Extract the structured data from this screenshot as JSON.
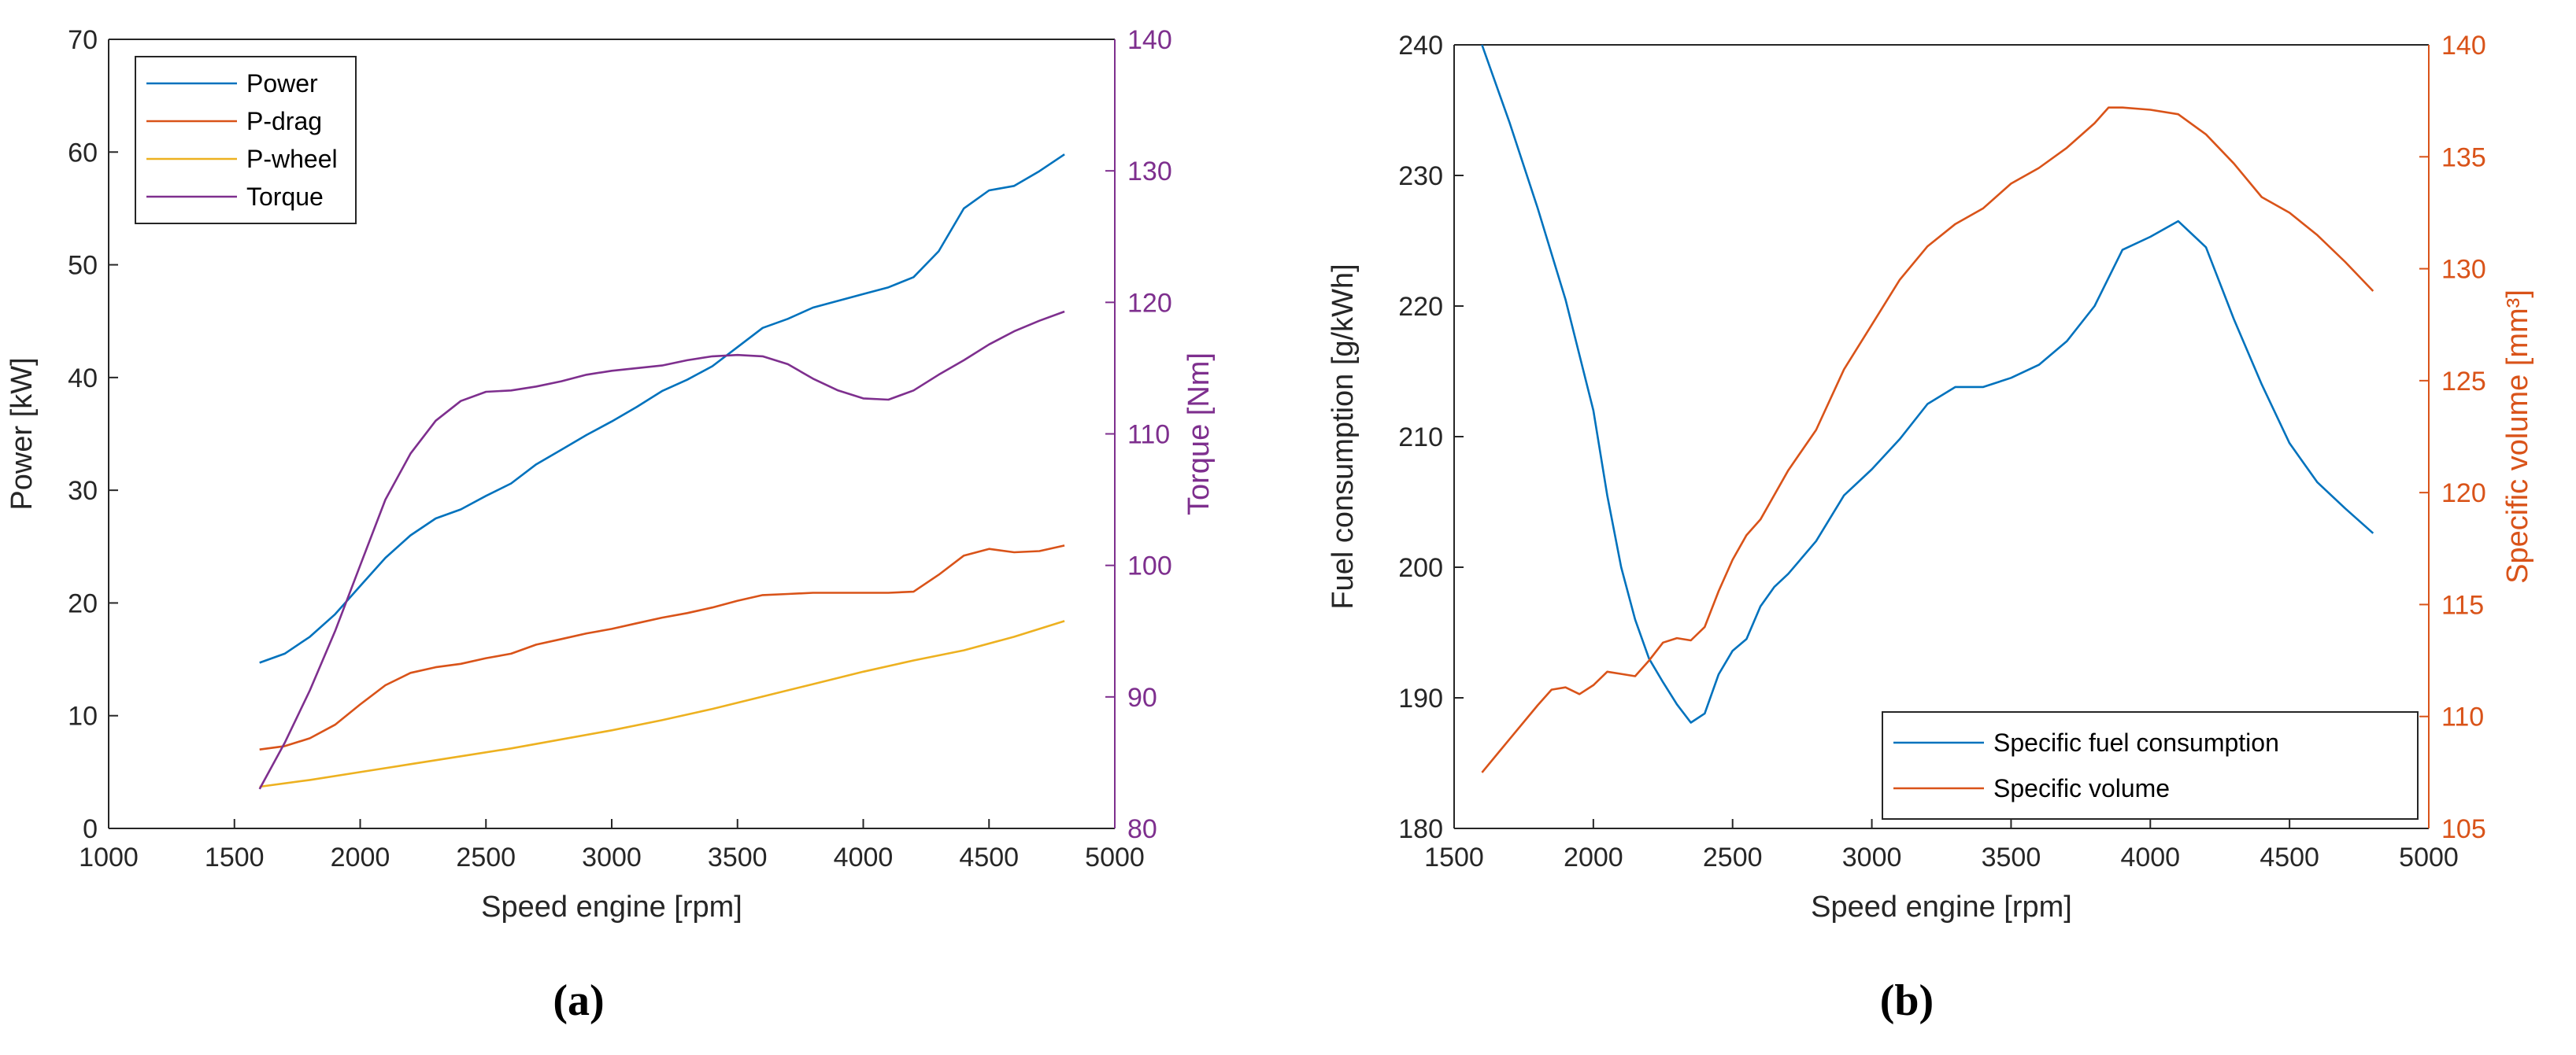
{
  "colors": {
    "power": "#0072BD",
    "p_drag": "#D95319",
    "p_wheel": "#EDB120",
    "torque": "#7E2F8E",
    "sfc": "#0072BD",
    "spec_vol": "#D95319",
    "axis": "#262626",
    "right_axis_a": "#7E2F8E",
    "right_axis_b": "#D95319"
  },
  "panels": {
    "a": "(a)",
    "b": "(b)"
  },
  "chart_data": [
    {
      "type": "line",
      "id": "a",
      "xlabel": "Speed engine [rpm]",
      "ylabel": "Power [kW]",
      "y2label": "Torque [Nm]",
      "xlim": [
        1000,
        5000
      ],
      "ylim": [
        0,
        70
      ],
      "y2lim": [
        80,
        140
      ],
      "xticks": [
        "1000",
        "1500",
        "2000",
        "2500",
        "3000",
        "3500",
        "4000",
        "4500",
        "5000"
      ],
      "yticks": [
        "0",
        "10",
        "20",
        "30",
        "40",
        "50",
        "60",
        "70"
      ],
      "y2ticks": [
        "80",
        "90",
        "100",
        "110",
        "120",
        "130",
        "140"
      ],
      "legend_position": "top-left",
      "series": [
        {
          "name": "Power",
          "axis": "left",
          "color_key": "power",
          "points": [
            [
              1600,
              14.7
            ],
            [
              1700,
              15.5
            ],
            [
              1800,
              17
            ],
            [
              1900,
              19
            ],
            [
              2000,
              21.5
            ],
            [
              2100,
              24
            ],
            [
              2200,
              26
            ],
            [
              2300,
              27.5
            ],
            [
              2400,
              28.3
            ],
            [
              2500,
              29.5
            ],
            [
              2600,
              30.6
            ],
            [
              2700,
              32.3
            ],
            [
              2800,
              33.6
            ],
            [
              2900,
              34.9
            ],
            [
              3000,
              36.1
            ],
            [
              3100,
              37.4
            ],
            [
              3200,
              38.8
            ],
            [
              3300,
              39.8
            ],
            [
              3400,
              41.0
            ],
            [
              3500,
              42.7
            ],
            [
              3600,
              44.4
            ],
            [
              3700,
              45.2
            ],
            [
              3800,
              46.2
            ],
            [
              3900,
              46.8
            ],
            [
              4000,
              47.4
            ],
            [
              4100,
              48.0
            ],
            [
              4200,
              48.9
            ],
            [
              4300,
              51.2
            ],
            [
              4400,
              55.0
            ],
            [
              4500,
              56.6
            ],
            [
              4600,
              57.0
            ],
            [
              4700,
              58.3
            ],
            [
              4800,
              59.8
            ]
          ]
        },
        {
          "name": "P-drag",
          "axis": "left",
          "color_key": "p_drag",
          "points": [
            [
              1600,
              7
            ],
            [
              1700,
              7.3
            ],
            [
              1800,
              8
            ],
            [
              1900,
              9.2
            ],
            [
              2000,
              11
            ],
            [
              2100,
              12.7
            ],
            [
              2200,
              13.8
            ],
            [
              2300,
              14.3
            ],
            [
              2400,
              14.6
            ],
            [
              2500,
              15.1
            ],
            [
              2600,
              15.5
            ],
            [
              2700,
              16.3
            ],
            [
              2800,
              16.8
            ],
            [
              2900,
              17.3
            ],
            [
              3000,
              17.7
            ],
            [
              3100,
              18.2
            ],
            [
              3200,
              18.7
            ],
            [
              3300,
              19.1
            ],
            [
              3400,
              19.6
            ],
            [
              3500,
              20.2
            ],
            [
              3600,
              20.7
            ],
            [
              3700,
              20.8
            ],
            [
              3800,
              20.9
            ],
            [
              3900,
              20.9
            ],
            [
              4000,
              20.9
            ],
            [
              4100,
              20.9
            ],
            [
              4200,
              21.0
            ],
            [
              4300,
              22.5
            ],
            [
              4400,
              24.2
            ],
            [
              4500,
              24.8
            ],
            [
              4600,
              24.5
            ],
            [
              4700,
              24.6
            ],
            [
              4800,
              25.1
            ]
          ]
        },
        {
          "name": "P-wheel",
          "axis": "left",
          "color_key": "p_wheel",
          "points": [
            [
              1600,
              3.7
            ],
            [
              1800,
              4.3
            ],
            [
              2000,
              5.0
            ],
            [
              2200,
              5.7
            ],
            [
              2400,
              6.4
            ],
            [
              2600,
              7.1
            ],
            [
              2800,
              7.9
            ],
            [
              3000,
              8.7
            ],
            [
              3200,
              9.6
            ],
            [
              3400,
              10.6
            ],
            [
              3600,
              11.7
            ],
            [
              3800,
              12.8
            ],
            [
              4000,
              13.9
            ],
            [
              4200,
              14.9
            ],
            [
              4400,
              15.8
            ],
            [
              4600,
              17.0
            ],
            [
              4800,
              18.4
            ]
          ]
        },
        {
          "name": "Torque",
          "axis": "right",
          "color_key": "torque",
          "points": [
            [
              1600,
              83
            ],
            [
              1700,
              86.5
            ],
            [
              1800,
              90.5
            ],
            [
              1900,
              95
            ],
            [
              2000,
              100
            ],
            [
              2100,
              105
            ],
            [
              2200,
              108.5
            ],
            [
              2300,
              111
            ],
            [
              2400,
              112.5
            ],
            [
              2500,
              113.2
            ],
            [
              2600,
              113.3
            ],
            [
              2700,
              113.6
            ],
            [
              2800,
              114.0
            ],
            [
              2900,
              114.5
            ],
            [
              3000,
              114.8
            ],
            [
              3100,
              115.0
            ],
            [
              3200,
              115.2
            ],
            [
              3300,
              115.6
            ],
            [
              3400,
              115.9
            ],
            [
              3500,
              116.0
            ],
            [
              3600,
              115.9
            ],
            [
              3700,
              115.3
            ],
            [
              3800,
              114.2
            ],
            [
              3900,
              113.3
            ],
            [
              4000,
              112.7
            ],
            [
              4100,
              112.6
            ],
            [
              4200,
              113.3
            ],
            [
              4300,
              114.5
            ],
            [
              4400,
              115.6
            ],
            [
              4500,
              116.8
            ],
            [
              4600,
              117.8
            ],
            [
              4700,
              118.6
            ],
            [
              4800,
              119.3
            ]
          ]
        }
      ]
    },
    {
      "type": "line",
      "id": "b",
      "xlabel": "Speed engine [rpm]",
      "ylabel": "Fuel consumption [g/kWh]",
      "y2label": "Specific volume [mm³]",
      "xlim": [
        1500,
        5000
      ],
      "ylim": [
        180,
        240
      ],
      "y2lim": [
        105,
        140
      ],
      "xticks": [
        "1500",
        "2000",
        "2500",
        "3000",
        "3500",
        "4000",
        "4500",
        "5000"
      ],
      "yticks": [
        "180",
        "190",
        "200",
        "210",
        "220",
        "230",
        "240"
      ],
      "y2ticks": [
        "105",
        "110",
        "115",
        "120",
        "125",
        "130",
        "135",
        "140"
      ],
      "legend_position": "bottom-right",
      "series": [
        {
          "name": "Specific fuel consumption",
          "axis": "left",
          "color_key": "sfc",
          "points": [
            [
              1600,
              240
            ],
            [
              1700,
              234
            ],
            [
              1800,
              227.5
            ],
            [
              1900,
              220.5
            ],
            [
              2000,
              212
            ],
            [
              2050,
              205.5
            ],
            [
              2100,
              200
            ],
            [
              2150,
              196
            ],
            [
              2200,
              193
            ],
            [
              2250,
              191.2
            ],
            [
              2300,
              189.5
            ],
            [
              2350,
              188.1
            ],
            [
              2400,
              188.8
            ],
            [
              2450,
              191.8
            ],
            [
              2500,
              193.6
            ],
            [
              2550,
              194.5
            ],
            [
              2600,
              197
            ],
            [
              2650,
              198.5
            ],
            [
              2700,
              199.5
            ],
            [
              2800,
              202
            ],
            [
              2900,
              205.5
            ],
            [
              3000,
              207.5
            ],
            [
              3100,
              209.8
            ],
            [
              3200,
              212.5
            ],
            [
              3300,
              213.8
            ],
            [
              3400,
              213.8
            ],
            [
              3500,
              214.5
            ],
            [
              3600,
              215.5
            ],
            [
              3700,
              217.3
            ],
            [
              3800,
              220
            ],
            [
              3900,
              224.3
            ],
            [
              4000,
              225.3
            ],
            [
              4100,
              226.5
            ],
            [
              4200,
              224.5
            ],
            [
              4300,
              219
            ],
            [
              4400,
              214
            ],
            [
              4500,
              209.5
            ],
            [
              4600,
              206.5
            ],
            [
              4700,
              204.5
            ],
            [
              4800,
              202.6
            ]
          ]
        },
        {
          "name": "Specific volume",
          "axis": "right",
          "color_key": "spec_vol",
          "points": [
            [
              1600,
              107.5
            ],
            [
              1700,
              109
            ],
            [
              1800,
              110.5
            ],
            [
              1850,
              111.2
            ],
            [
              1900,
              111.3
            ],
            [
              1950,
              111.0
            ],
            [
              2000,
              111.4
            ],
            [
              2050,
              112.0
            ],
            [
              2100,
              111.9
            ],
            [
              2150,
              111.8
            ],
            [
              2200,
              112.5
            ],
            [
              2250,
              113.3
            ],
            [
              2300,
              113.5
            ],
            [
              2350,
              113.4
            ],
            [
              2400,
              114.0
            ],
            [
              2450,
              115.6
            ],
            [
              2500,
              117.0
            ],
            [
              2550,
              118.1
            ],
            [
              2600,
              118.8
            ],
            [
              2700,
              121
            ],
            [
              2800,
              122.8
            ],
            [
              2900,
              125.5
            ],
            [
              3000,
              127.5
            ],
            [
              3100,
              129.5
            ],
            [
              3200,
              131.0
            ],
            [
              3300,
              132.0
            ],
            [
              3400,
              132.7
            ],
            [
              3500,
              133.8
            ],
            [
              3600,
              134.5
            ],
            [
              3700,
              135.4
            ],
            [
              3800,
              136.5
            ],
            [
              3850,
              137.2
            ],
            [
              3900,
              137.2
            ],
            [
              4000,
              137.1
            ],
            [
              4100,
              136.9
            ],
            [
              4200,
              136.0
            ],
            [
              4300,
              134.7
            ],
            [
              4400,
              133.2
            ],
            [
              4500,
              132.5
            ],
            [
              4600,
              131.5
            ],
            [
              4700,
              130.3
            ],
            [
              4800,
              129.0
            ]
          ]
        }
      ]
    }
  ]
}
